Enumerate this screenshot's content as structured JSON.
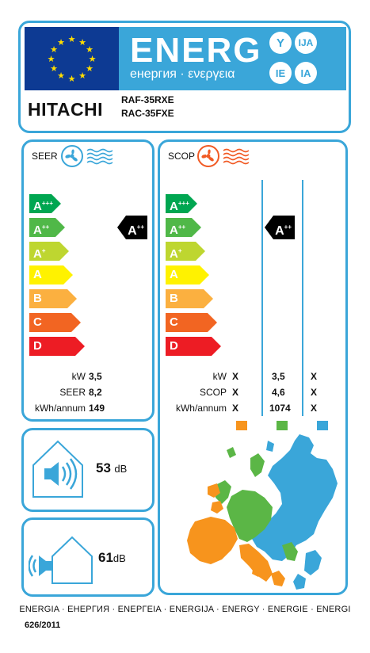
{
  "header": {
    "title": "ENERG",
    "subtitle": "енергия · ενεργεια",
    "language_suffixes": [
      "Y",
      "IJA",
      "IE",
      "IA"
    ],
    "brand": "HITACHI",
    "indoor_model": "RAF-35RXE",
    "outdoor_model": "RAC-35FXE",
    "colors": {
      "eu_blue": "#0d3a93",
      "eu_star": "#ffdd00",
      "label_blue": "#3aa6d9"
    }
  },
  "scale_classes": [
    {
      "class": "A",
      "sup": "+++",
      "color": "#00a651"
    },
    {
      "class": "A",
      "sup": "++",
      "color": "#50b848"
    },
    {
      "class": "A",
      "sup": "+",
      "color": "#bed630"
    },
    {
      "class": "A",
      "sup": "",
      "color": "#fff200"
    },
    {
      "class": "B",
      "sup": "",
      "color": "#fbb040"
    },
    {
      "class": "C",
      "sup": "",
      "color": "#f26522"
    },
    {
      "class": "D",
      "sup": "",
      "color": "#ed1c24"
    }
  ],
  "cooling": {
    "title": "SEER",
    "icon": "fan-snowflake-icon",
    "rating": {
      "class": "A",
      "sup": "++",
      "index": 1
    },
    "rows": [
      {
        "label": "kW",
        "value": "3,5"
      },
      {
        "label": "SEER",
        "value": "8,2"
      },
      {
        "label": "kWh/annum",
        "value": "149"
      }
    ]
  },
  "heating": {
    "title": "SCOP",
    "icon": "fan-heat-icon",
    "rating": {
      "class": "A",
      "sup": "++",
      "index": 1
    },
    "zone_colors": [
      "#f7941d",
      "#5bb646",
      "#3aa6d9"
    ],
    "rows": [
      {
        "label": "kW",
        "values": [
          "X",
          "3,5",
          "X"
        ]
      },
      {
        "label": "SCOP",
        "values": [
          "X",
          "4,6",
          "X"
        ]
      },
      {
        "label": "kWh/annum",
        "values": [
          "X",
          "1074",
          "X"
        ]
      }
    ]
  },
  "noise": {
    "indoor": {
      "value": "53",
      "unit": "dB",
      "icon": "indoor-speaker-icon"
    },
    "outdoor": {
      "value": "61",
      "unit": "dB",
      "icon": "outdoor-speaker-icon"
    }
  },
  "map": {
    "icon": "europe-climate-zones-map"
  },
  "footer": {
    "energy_words": "ENERGIA · ЕНЕРГИЯ · ΕΝΕΡΓΕΙΑ · ENERGIJA · ENERGY · ENERGIE · ENERGI",
    "regulation": "626/2011"
  }
}
